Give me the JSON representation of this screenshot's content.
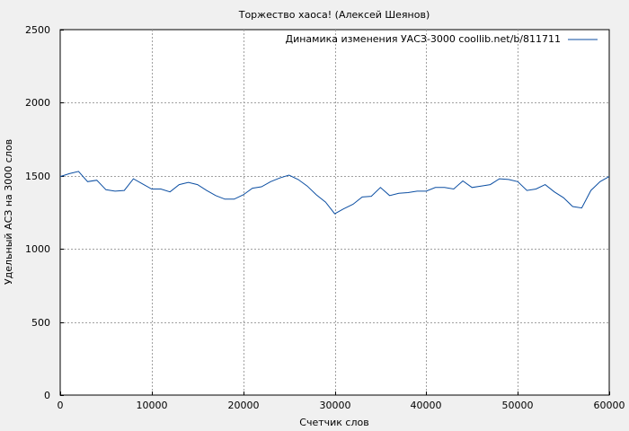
{
  "chart_data": {
    "type": "line",
    "title": "Торжество хаоса! (Алексей Шеянов)",
    "xlabel": "Счетчик слов",
    "ylabel": "Удельный АСЗ на 3000 слов",
    "xlim": [
      0,
      60000
    ],
    "ylim": [
      0,
      2500
    ],
    "xticks": [
      0,
      10000,
      20000,
      30000,
      40000,
      50000,
      60000
    ],
    "xtick_labels": [
      "0",
      "10000",
      "20000",
      "30000",
      "40000",
      "50000",
      "60000"
    ],
    "yticks": [
      0,
      500,
      1000,
      1500,
      2000,
      2500
    ],
    "ytick_labels": [
      "0",
      "500",
      "1000",
      "1500",
      "2000",
      "2500"
    ],
    "grid": true,
    "legend_position": "top-right",
    "series": [
      {
        "name": "Динамика изменения УАСЗ-3000 coollib.net/b/811711",
        "color": "#0b4ea2",
        "x": [
          0,
          1000,
          2000,
          3000,
          4000,
          5000,
          6000,
          7000,
          8000,
          9000,
          10000,
          11000,
          12000,
          13000,
          14000,
          15000,
          16000,
          17000,
          18000,
          19000,
          20000,
          21000,
          22000,
          23000,
          24000,
          25000,
          26000,
          27000,
          28000,
          29000,
          30000,
          31000,
          32000,
          33000,
          34000,
          35000,
          36000,
          37000,
          38000,
          39000,
          40000,
          41000,
          42000,
          43000,
          44000,
          45000,
          46000,
          47000,
          48000,
          49000,
          50000,
          51000,
          52000,
          53000,
          54000,
          55000,
          56000,
          57000,
          58000,
          59000,
          60000
        ],
        "y": [
          1495,
          1515,
          1530,
          1460,
          1470,
          1405,
          1395,
          1400,
          1480,
          1445,
          1410,
          1410,
          1390,
          1440,
          1455,
          1440,
          1400,
          1365,
          1340,
          1340,
          1370,
          1415,
          1425,
          1460,
          1485,
          1505,
          1475,
          1430,
          1370,
          1320,
          1240,
          1275,
          1305,
          1355,
          1360,
          1420,
          1365,
          1380,
          1385,
          1395,
          1395,
          1420,
          1420,
          1410,
          1465,
          1420,
          1430,
          1440,
          1480,
          1475,
          1460,
          1400,
          1410,
          1440,
          1390,
          1350,
          1290,
          1280,
          1400,
          1460,
          1495
        ]
      }
    ]
  }
}
